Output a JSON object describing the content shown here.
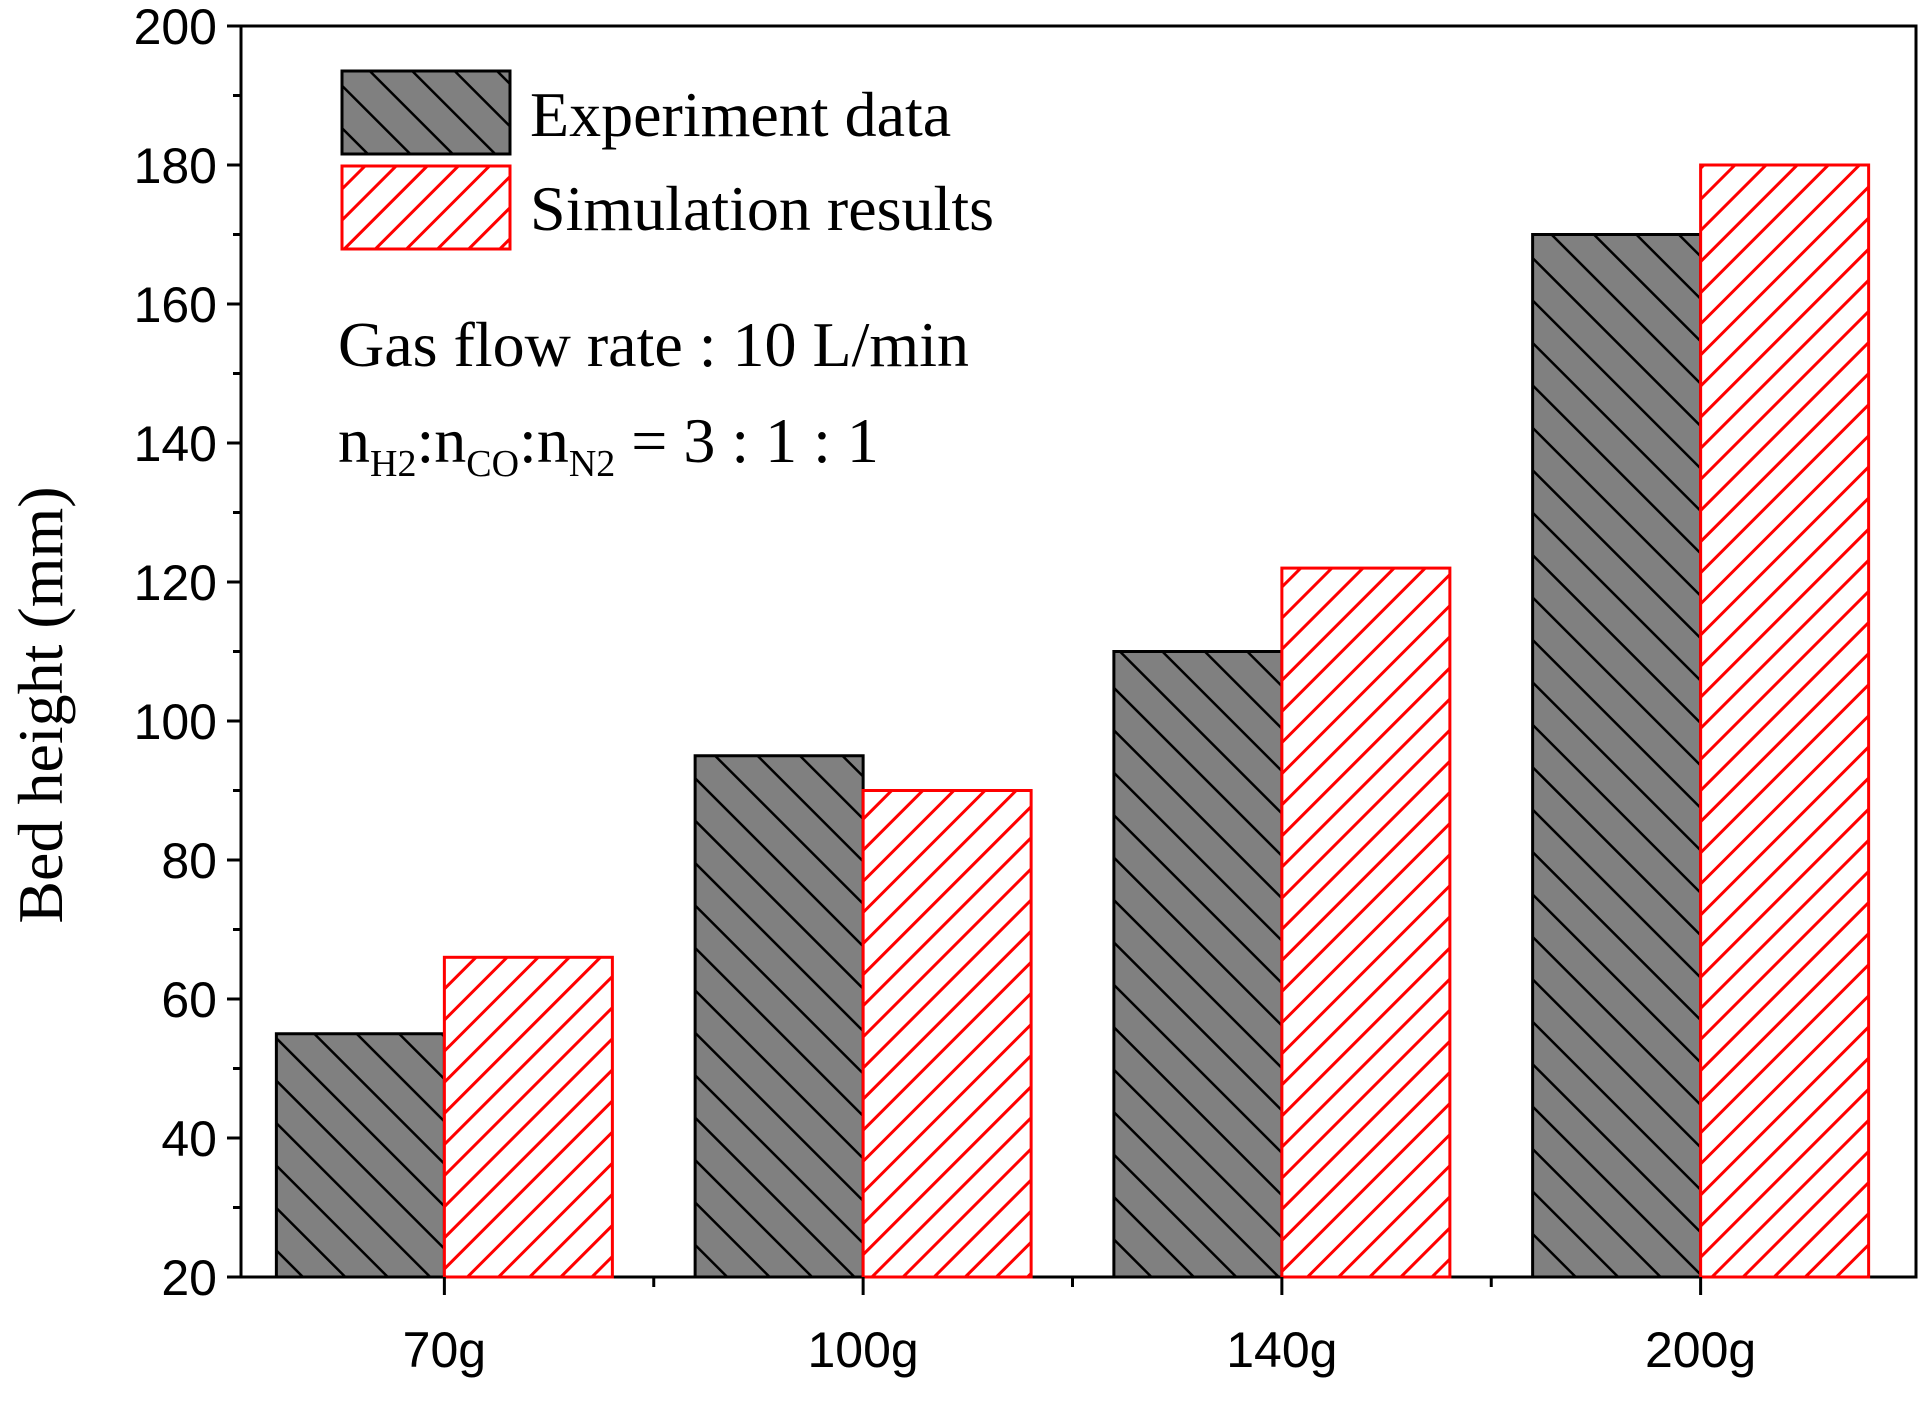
{
  "chart_data": {
    "type": "bar",
    "title": "",
    "xlabel": "",
    "ylabel": "Bed height (mm)",
    "ylim": [
      20,
      200
    ],
    "yticks": [
      20,
      40,
      60,
      80,
      100,
      120,
      140,
      160,
      180,
      200
    ],
    "categories": [
      "70g",
      "100g",
      "140g",
      "200g"
    ],
    "series": [
      {
        "name": "Experiment data",
        "values": [
          55,
          95,
          110,
          170
        ],
        "color": "#808080",
        "edge": "#000000",
        "hatch": "#000000",
        "pattern": "backslash"
      },
      {
        "name": "Simulation results",
        "values": [
          66,
          90,
          122,
          180
        ],
        "color": "#ffffff",
        "edge": "#ff0000",
        "hatch": "#ff0000",
        "pattern": "slash"
      }
    ],
    "legend_position": "top-left",
    "annotations": {
      "flow": "Gas flow rate : 10 L/min",
      "ratio": {
        "n1": "n",
        "s1": "H2",
        "sep1": ":",
        "n2": "n",
        "s2": "CO",
        "sep2": ":",
        "n3": "n",
        "s3": "N2",
        "tail": " = 3 : 1 : 1"
      }
    }
  }
}
